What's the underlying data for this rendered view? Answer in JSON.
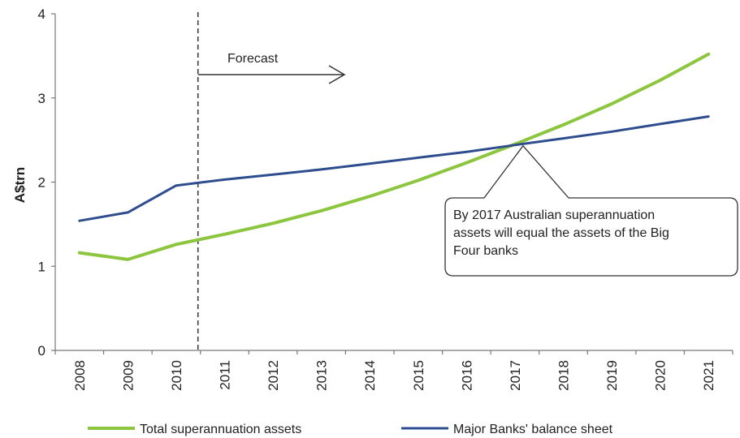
{
  "chart_data": {
    "type": "line",
    "title": "",
    "xlabel": "",
    "ylabel": "A$trn",
    "ylim": [
      0,
      4
    ],
    "yticks": [
      "0",
      "1",
      "2",
      "3",
      "4"
    ],
    "categories": [
      "2008",
      "2009",
      "2010",
      "2011",
      "2012",
      "2013",
      "2014",
      "2015",
      "2016",
      "2017",
      "2018",
      "2019",
      "2020",
      "2021"
    ],
    "series": [
      {
        "name": "Total superannuation assets",
        "color": "#8cc63f",
        "values": [
          1.16,
          1.08,
          1.26,
          1.38,
          1.51,
          1.66,
          1.83,
          2.02,
          2.23,
          2.45,
          2.68,
          2.93,
          3.21,
          3.52
        ]
      },
      {
        "name": "Major Banks' balance sheet",
        "color": "#2e4d8f",
        "values": [
          1.54,
          1.64,
          1.96,
          2.03,
          2.09,
          2.15,
          2.22,
          2.29,
          2.36,
          2.44,
          2.52,
          2.6,
          2.69,
          2.78
        ]
      }
    ],
    "forecast_label": "Forecast",
    "forecast_start_between": [
      "2010",
      "2011"
    ],
    "callout": {
      "lines": [
        "By 2017 Australian superannuation",
        "assets will equal the assets of the Big",
        "Four banks"
      ],
      "target_year": "2017"
    },
    "legend_position": "bottom"
  }
}
